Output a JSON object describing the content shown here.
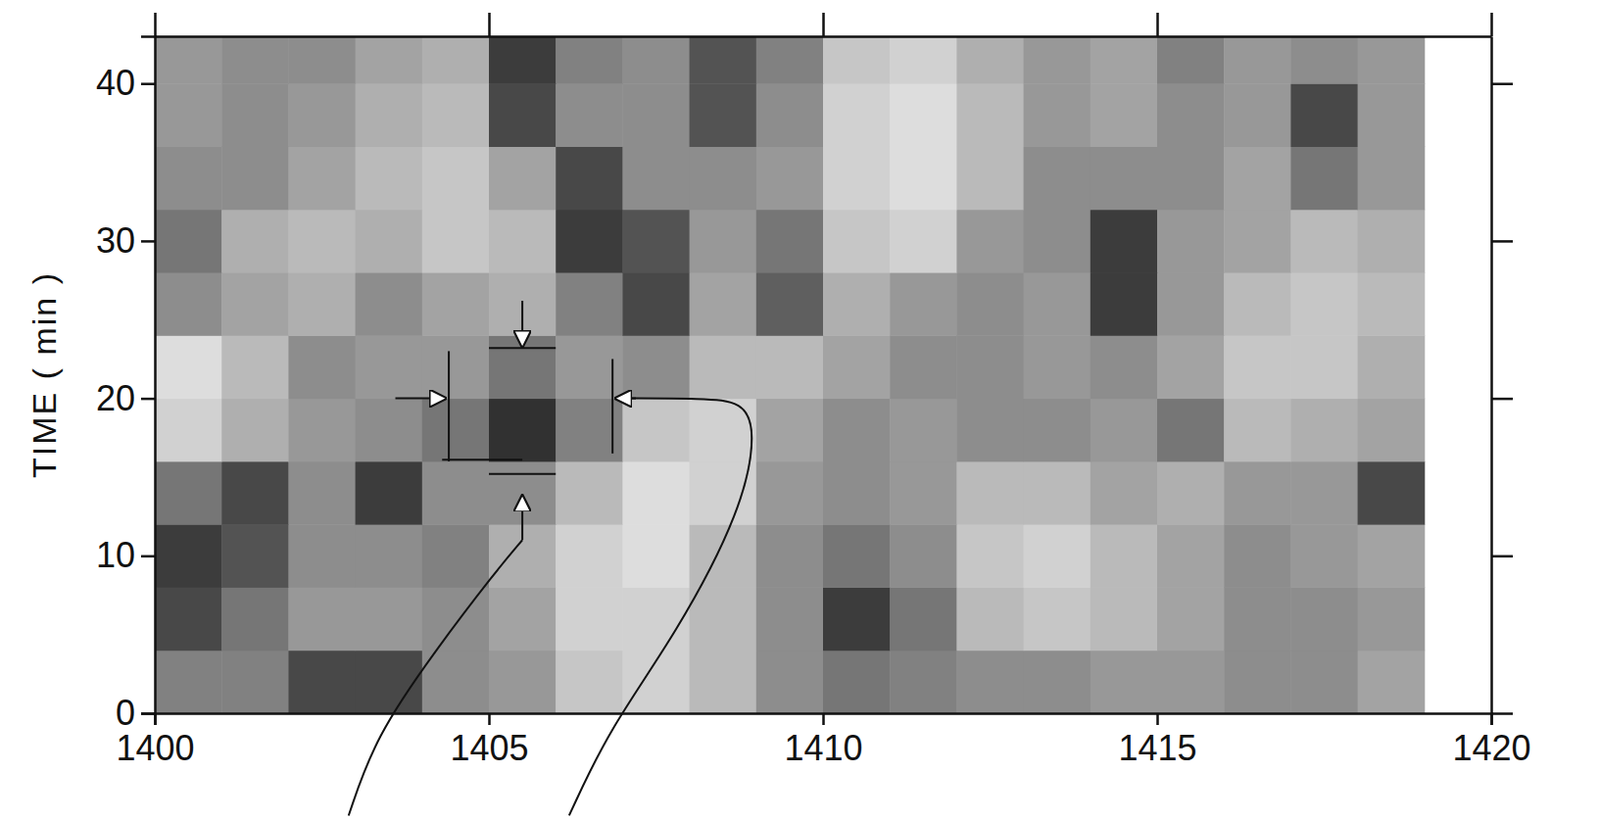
{
  "chart_data": {
    "type": "heatmap",
    "ylabel": "TIME ( min )",
    "xlim": [
      1400,
      1420
    ],
    "ylim": [
      0,
      43
    ],
    "xticks": [
      1400,
      1405,
      1410,
      1415,
      1420
    ],
    "yticks": [
      0,
      10,
      20,
      30,
      40
    ],
    "x_bins": [
      1400,
      1401,
      1402,
      1403,
      1404,
      1405,
      1406,
      1407,
      1408,
      1409,
      1410,
      1411,
      1412,
      1413,
      1414,
      1415,
      1416,
      1417,
      1418,
      1419
    ],
    "y_bins": [
      0,
      4,
      8,
      12,
      16,
      20,
      24,
      28,
      32,
      36,
      40,
      43
    ],
    "zlim": [
      0,
      1
    ],
    "cells": [
      [
        0.55,
        0.55,
        0.8,
        0.8,
        0.5,
        0.45,
        0.25,
        0.2,
        0.3,
        0.5,
        0.6,
        0.55,
        0.5,
        0.5,
        0.45,
        0.45,
        0.5,
        0.5,
        0.4
      ],
      [
        0.8,
        0.6,
        0.45,
        0.45,
        0.5,
        0.4,
        0.2,
        0.2,
        0.3,
        0.5,
        0.85,
        0.6,
        0.3,
        0.25,
        0.3,
        0.4,
        0.5,
        0.5,
        0.45
      ],
      [
        0.85,
        0.75,
        0.5,
        0.5,
        0.55,
        0.35,
        0.2,
        0.15,
        0.3,
        0.5,
        0.6,
        0.5,
        0.25,
        0.2,
        0.3,
        0.4,
        0.5,
        0.45,
        0.4
      ],
      [
        0.6,
        0.8,
        0.5,
        0.85,
        0.5,
        0.5,
        0.3,
        0.15,
        0.2,
        0.45,
        0.5,
        0.45,
        0.3,
        0.3,
        0.4,
        0.35,
        0.45,
        0.45,
        0.8
      ],
      [
        0.2,
        0.35,
        0.45,
        0.5,
        0.6,
        0.9,
        0.55,
        0.25,
        0.2,
        0.4,
        0.5,
        0.45,
        0.5,
        0.5,
        0.45,
        0.6,
        0.3,
        0.35,
        0.4
      ],
      [
        0.15,
        0.3,
        0.5,
        0.45,
        0.45,
        0.6,
        0.45,
        0.5,
        0.3,
        0.3,
        0.4,
        0.5,
        0.5,
        0.45,
        0.5,
        0.4,
        0.25,
        0.25,
        0.35
      ],
      [
        0.5,
        0.4,
        0.35,
        0.5,
        0.4,
        0.35,
        0.55,
        0.8,
        0.4,
        0.7,
        0.35,
        0.45,
        0.5,
        0.45,
        0.85,
        0.45,
        0.3,
        0.25,
        0.3
      ],
      [
        0.6,
        0.35,
        0.3,
        0.35,
        0.25,
        0.3,
        0.85,
        0.75,
        0.45,
        0.6,
        0.25,
        0.2,
        0.45,
        0.5,
        0.85,
        0.45,
        0.4,
        0.3,
        0.35
      ],
      [
        0.5,
        0.5,
        0.4,
        0.3,
        0.25,
        0.4,
        0.8,
        0.5,
        0.5,
        0.45,
        0.2,
        0.15,
        0.3,
        0.5,
        0.5,
        0.5,
        0.4,
        0.6,
        0.45
      ],
      [
        0.45,
        0.5,
        0.45,
        0.35,
        0.3,
        0.8,
        0.5,
        0.5,
        0.75,
        0.5,
        0.2,
        0.15,
        0.3,
        0.45,
        0.4,
        0.5,
        0.45,
        0.8,
        0.45
      ],
      [
        0.45,
        0.5,
        0.5,
        0.4,
        0.35,
        0.85,
        0.55,
        0.5,
        0.75,
        0.55,
        0.25,
        0.2,
        0.35,
        0.45,
        0.4,
        0.55,
        0.45,
        0.5,
        0.45
      ]
    ]
  }
}
